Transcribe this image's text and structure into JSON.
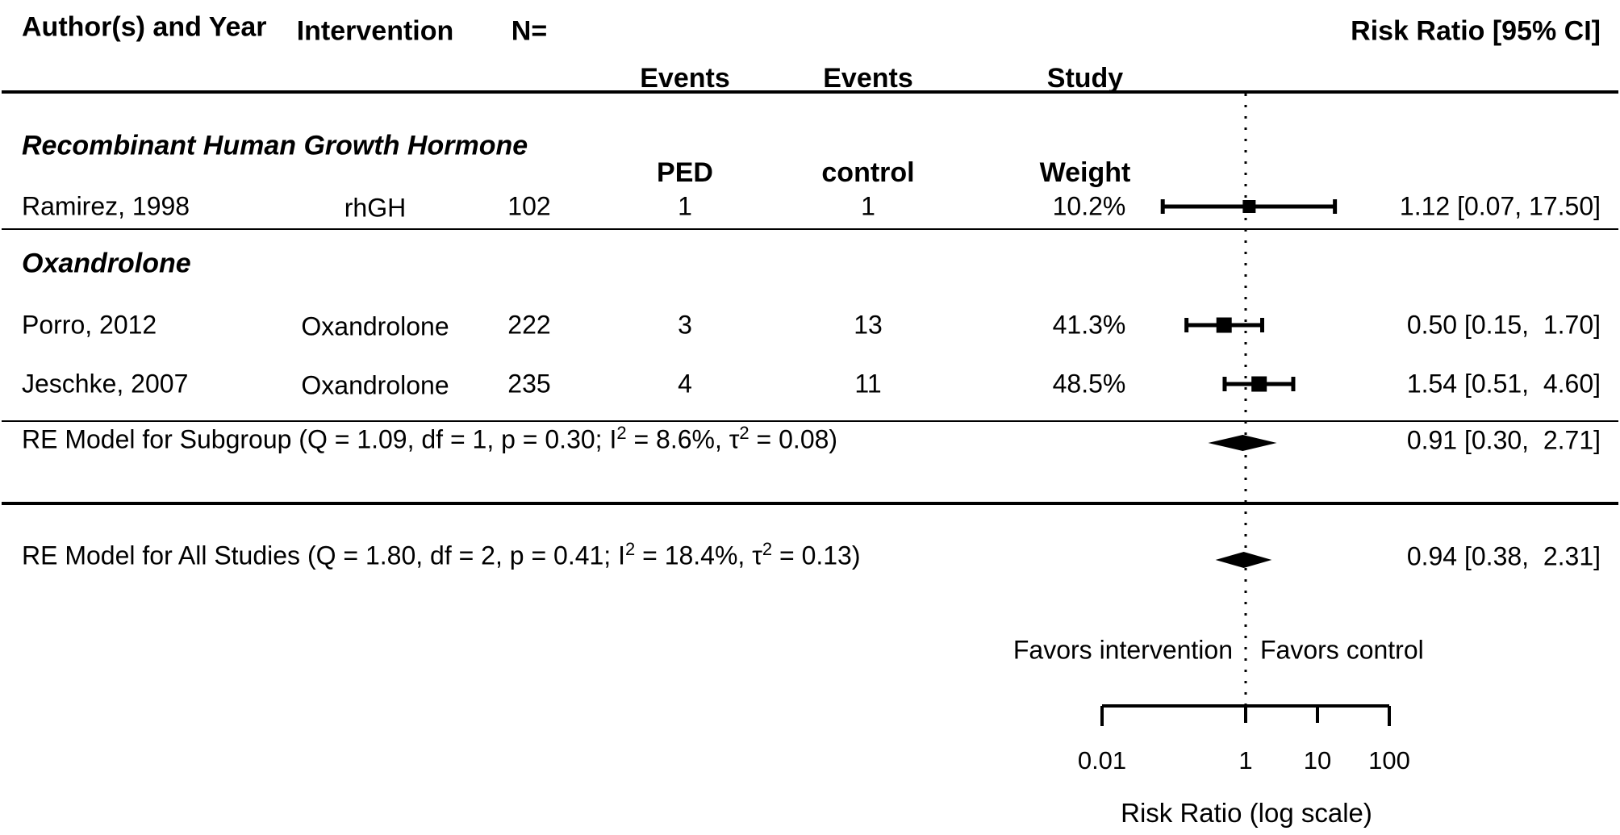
{
  "colors": {
    "foreground": "#000000",
    "background": "#ffffff"
  },
  "columns": {
    "author": "Author(s) and Year",
    "intervention": "Intervention",
    "n": "N=",
    "events_ped_line1": "Events",
    "events_ped_line2": "PED",
    "events_control_line1": "Events",
    "events_control_line2": "control",
    "weight_line1": "Study",
    "weight_line2": "Weight",
    "risk_ratio": "Risk Ratio [95% CI]"
  },
  "chart_data": {
    "type": "scatter",
    "subtype": "forest-plot",
    "title": "",
    "xlabel": "Risk Ratio (log scale)",
    "log_scale": true,
    "x_range": [
      0.01,
      100
    ],
    "x_ticks": [
      "0.01",
      "1",
      "10",
      "100"
    ],
    "x_tick_values": [
      0.01,
      1,
      10,
      100
    ],
    "reference_line": 1,
    "favors_left": "Favors intervention",
    "favors_right": "Favors control",
    "subgroups": [
      {
        "label": "Recombinant Human Growth Hormone",
        "studies": [
          {
            "author": "Ramirez, 1998",
            "intervention": "rhGH",
            "n": "102",
            "events_ped": "1",
            "events_control": "1",
            "weight_pct": 10.2,
            "weight_label": "10.2%",
            "rr": 1.12,
            "ci_low": 0.07,
            "ci_high": 17.5,
            "rr_label": "1.12 [0.07, 17.50]"
          }
        ]
      },
      {
        "label": "Oxandrolone",
        "studies": [
          {
            "author": "Porro, 2012",
            "intervention": "Oxandrolone",
            "n": "222",
            "events_ped": "3",
            "events_control": "13",
            "weight_pct": 41.3,
            "weight_label": "41.3%",
            "rr": 0.5,
            "ci_low": 0.15,
            "ci_high": 1.7,
            "rr_label": "0.50 [0.15,  1.70]"
          },
          {
            "author": "Jeschke, 2007",
            "intervention": "Oxandrolone",
            "n": "235",
            "events_ped": "4",
            "events_control": "11",
            "weight_pct": 48.5,
            "weight_label": "48.5%",
            "rr": 1.54,
            "ci_low": 0.51,
            "ci_high": 4.6,
            "rr_label": "1.54 [0.51,  4.60]"
          }
        ]
      }
    ],
    "summaries": [
      {
        "label_p1": "RE Model for Subgroup (Q = 1.09, df = 1, p = 0.30; I",
        "label_sup1": "2",
        "label_p2": " = 8.6%, τ",
        "label_sup2": "2",
        "label_p3": " = 0.08)",
        "rr": 0.91,
        "ci_low": 0.3,
        "ci_high": 2.71,
        "rr_label": "0.91 [0.30,  2.71]"
      },
      {
        "label_p1": "RE Model for All Studies (Q = 1.80, df = 2, p = 0.41; I",
        "label_sup1": "2",
        "label_p2": " = 18.4%, τ",
        "label_sup2": "2",
        "label_p3": " = 0.13)",
        "rr": 0.94,
        "ci_low": 0.38,
        "ci_high": 2.31,
        "rr_label": "0.94 [0.38,  2.31]"
      }
    ]
  }
}
